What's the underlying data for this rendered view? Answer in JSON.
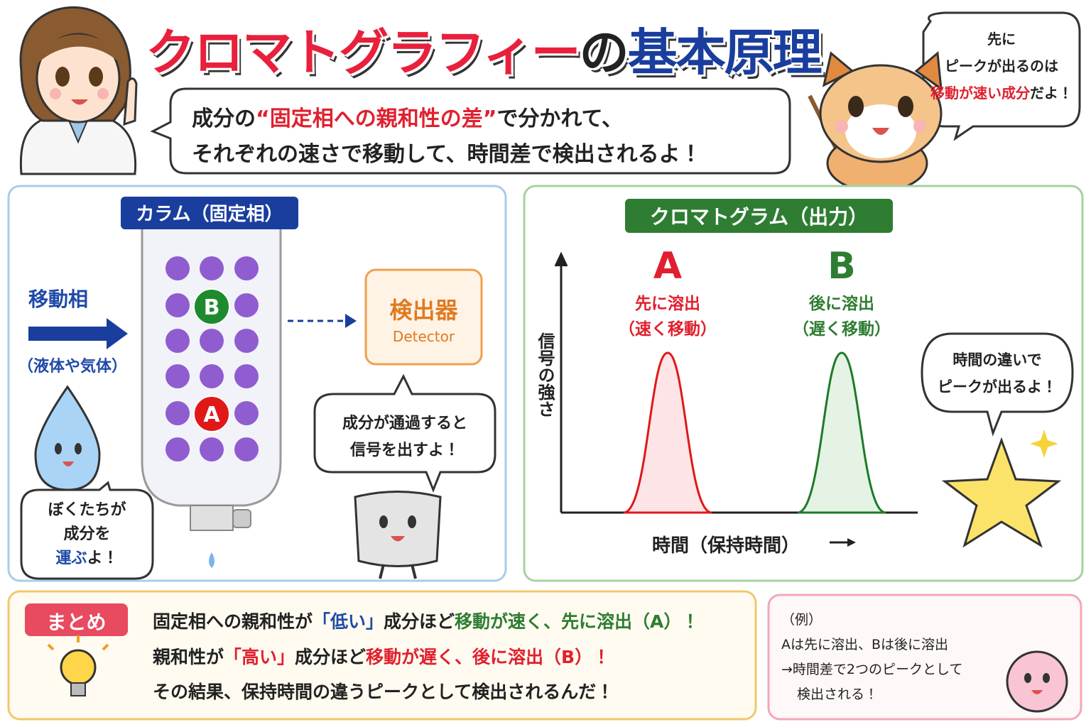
{
  "title": [
    "クロマトグラフィー",
    "の",
    "基本原理"
  ],
  "intro": {
    "line1": [
      "成分の",
      "“固定相への親和性の差”",
      "で分かれて、"
    ],
    "line2": "それぞれの速さで移動して、時間差で検出されるよ！"
  },
  "cat_bubble": {
    "line1": "先に",
    "line2": "ピークが出るのは",
    "line3": [
      "移動が速い成分",
      "だよ！"
    ]
  },
  "column_panel": {
    "label": "カラム（固定相）",
    "mobile_phase": "移動相",
    "mobile_note": "（液体や気体）",
    "balls": [
      "B",
      "A"
    ],
    "detector": {
      "name": "検出器",
      "en": "Detector"
    },
    "detector_bubble": [
      "成分が通過すると",
      "信号を出すよ！"
    ],
    "drop_bubble": {
      "line1": "ぼくたちが",
      "line2": "成分を",
      "line3": [
        "運ぶ",
        "よ！"
      ]
    }
  },
  "chromatogram_panel": {
    "label": "クロマトグラム（出力）",
    "peaks": [
      {
        "name": "A",
        "note": [
          "先に溶出",
          "（速く移動）"
        ]
      },
      {
        "name": "B",
        "note": [
          "後に溶出",
          "（遅く移動）"
        ]
      }
    ],
    "y_label": "信号の強さ",
    "x_label": "時間（保持時間）",
    "star_bubble": [
      "時間の違いで",
      "ピークが出るよ！"
    ]
  },
  "summary": {
    "label": "まとめ",
    "line1": [
      "固定相への親和性が",
      "「低い」",
      "成分ほど",
      "移動が速く、先に溶出（A）！"
    ],
    "line2": [
      "親和性が",
      "「高い」",
      "成分ほど",
      "移動が遅く、後に溶出（B）！"
    ],
    "line3": "その結果、保持時間の違うピークとして検出されるんだ！"
  },
  "example": [
    "（例）",
    "Aは先に溶出、Bは後に溶出",
    "→時間差で2つのピークとして",
    "検出される！"
  ]
}
